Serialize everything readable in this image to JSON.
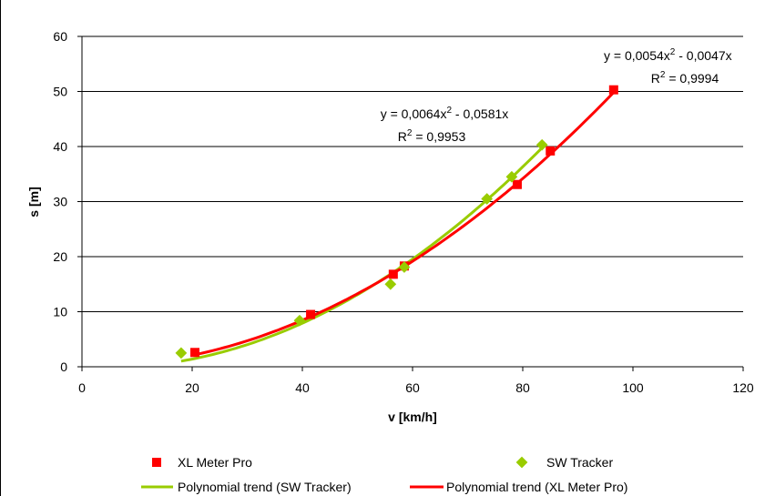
{
  "chart_data": {
    "type": "scatter",
    "xlabel": "v [km/h]",
    "ylabel": "s [m]",
    "xlim": [
      0,
      120
    ],
    "ylim": [
      0,
      60
    ],
    "x_ticks": [
      0,
      20,
      40,
      60,
      80,
      100,
      120
    ],
    "y_ticks": [
      0,
      10,
      20,
      30,
      40,
      50,
      60
    ],
    "grid": "horizontal",
    "legend_position": "bottom",
    "series": [
      {
        "name": "XL Meter Pro",
        "marker": "square",
        "color": "#ff0000",
        "x": [
          20.5,
          41.5,
          56.5,
          58.5,
          79,
          85,
          96.5
        ],
        "y": [
          2.6,
          9.5,
          16.8,
          18.3,
          33.1,
          39.2,
          50.3
        ]
      },
      {
        "name": "SW Tracker",
        "marker": "diamond",
        "color": "#99cc00",
        "x": [
          18,
          39.5,
          56,
          58.5,
          73.5,
          78,
          83.5
        ],
        "y": [
          2.5,
          8.4,
          15,
          18.1,
          30.5,
          34.5,
          40.3
        ]
      }
    ],
    "trendlines": [
      {
        "name": "Polynomial trend (SW Tracker)",
        "color": "#99cc00",
        "a": 0.0064,
        "b": -0.0581,
        "x_range": [
          18,
          84
        ],
        "equation_parts": [
          "y = 0,0064x",
          "2",
          " - 0,0581x"
        ],
        "r2_parts": [
          "R",
          "2",
          " = 0,9953"
        ]
      },
      {
        "name": "Polynomial trend (XL Meter Pro)",
        "color": "#ff0000",
        "a": 0.0054,
        "b": -0.0047,
        "x_range": [
          20,
          97
        ],
        "equation_parts": [
          "y = 0,0054x",
          "2",
          " - 0,0047x"
        ],
        "r2_parts": [
          "R",
          "2",
          " = 0,9994"
        ]
      }
    ]
  }
}
